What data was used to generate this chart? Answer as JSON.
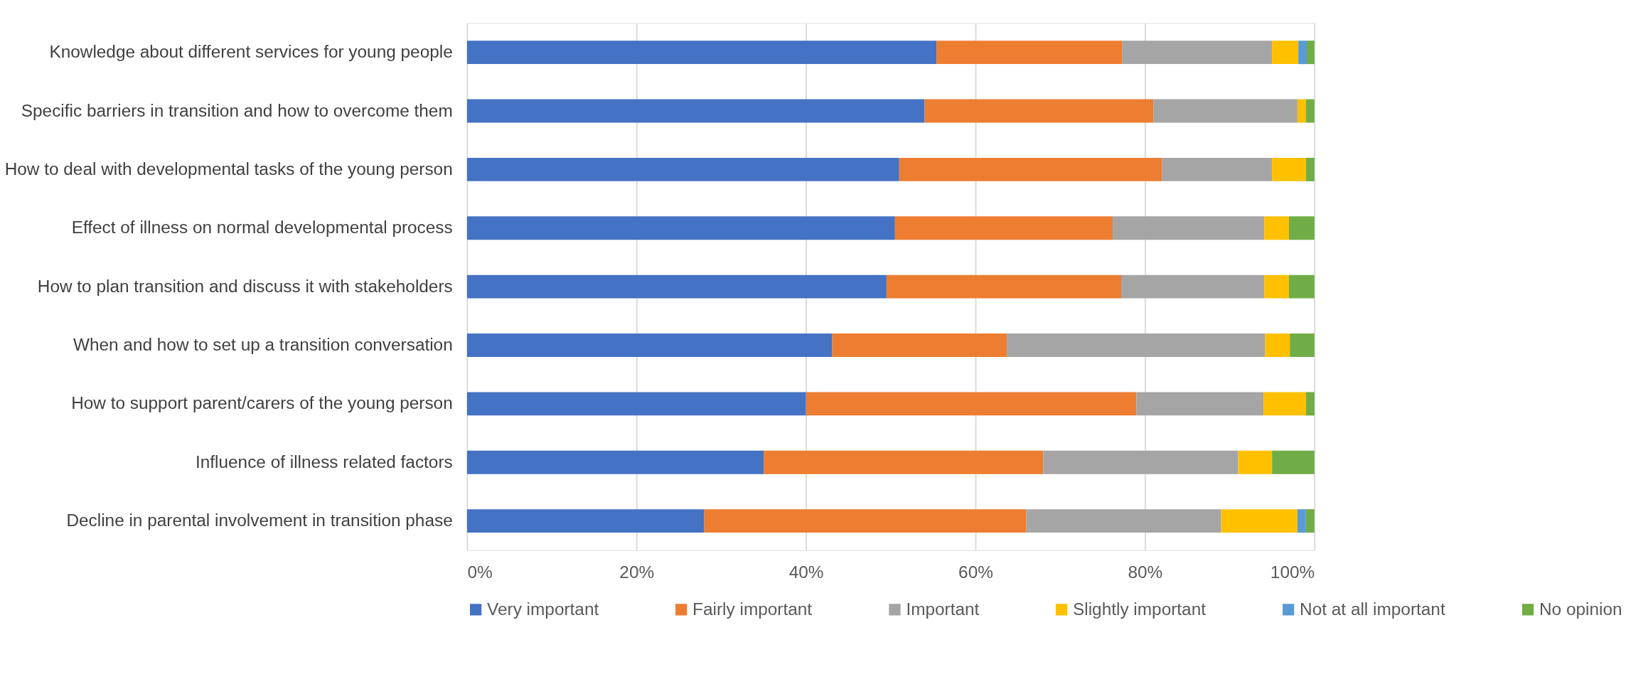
{
  "chart_data": {
    "type": "bar",
    "orientation": "horizontal",
    "stacked": true,
    "grid": "x",
    "legend": "bottom",
    "categories": [
      "Knowledge about different services for young people",
      "Specific barriers in transition and how to overcome them",
      "How to deal with developmental tasks of the young person",
      "Effect of illness on normal developmental process",
      "How to plan transition and discuss it with stakeholders",
      "When and how to set up a transition conversation",
      "How to support parent/carers of the young person",
      "Influence of illness related factors",
      "Decline in parental involvement in transition phase"
    ],
    "series": [
      {
        "name": "Very important",
        "color": "#4472c4",
        "values": [
          55.4,
          54,
          51,
          50.5,
          49.5,
          43.1,
          40,
          35,
          28
        ]
      },
      {
        "name": "Fairly important",
        "color": "#ed7d31",
        "values": [
          21.9,
          27,
          31,
          25.7,
          27.7,
          20.6,
          39,
          33,
          38
        ]
      },
      {
        "name": "Important",
        "color": "#a5a5a5",
        "values": [
          17.7,
          17,
          13,
          17.9,
          16.9,
          30.5,
          15,
          23,
          23
        ]
      },
      {
        "name": "Slightly important",
        "color": "#ffc000",
        "values": [
          3.1,
          1,
          4,
          2.9,
          2.9,
          2.9,
          5,
          4,
          9
        ]
      },
      {
        "name": "Not at all important",
        "color": "#5b9bd5",
        "values": [
          1,
          0,
          0,
          0,
          0,
          0,
          0,
          0,
          1
        ]
      },
      {
        "name": "No opinion",
        "color": "#70ad47",
        "values": [
          0.9,
          1,
          1,
          3,
          3,
          2.9,
          1,
          5,
          1
        ]
      }
    ],
    "xlim": [
      0,
      100
    ],
    "xticks": [
      {
        "value": 0,
        "label": "0%"
      },
      {
        "value": 20,
        "label": "20%"
      },
      {
        "value": 40,
        "label": "40%"
      },
      {
        "value": 60,
        "label": "60%"
      },
      {
        "value": 80,
        "label": "80%"
      },
      {
        "value": 100,
        "label": "100%"
      }
    ]
  }
}
